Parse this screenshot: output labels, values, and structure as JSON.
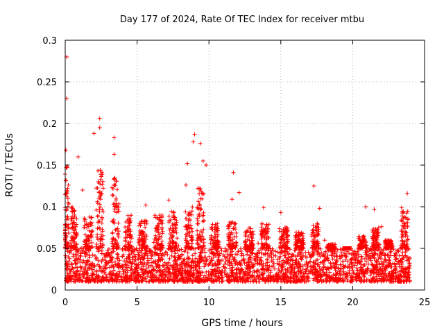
{
  "chart_data": {
    "type": "scatter",
    "title": "Day 177 of 2024, Rate Of TEC Index for receiver mtbu",
    "xlabel": "GPS time / hours",
    "ylabel": "ROTI / TECUs",
    "xlim": [
      0,
      25
    ],
    "ylim": [
      0,
      0.3
    ],
    "xticks": [
      0,
      5,
      10,
      15,
      20,
      25
    ],
    "xtick_labels": [
      "0",
      "5",
      "10",
      "15",
      "20",
      "25"
    ],
    "yticks": [
      0,
      0.05,
      0.1,
      0.15,
      0.2,
      0.25,
      0.3
    ],
    "ytick_labels": [
      "0",
      "0.05",
      "0.1",
      "0.15",
      "0.2",
      "0.25",
      "0.3"
    ],
    "grid": true,
    "marker": "+",
    "color": "#ff0000",
    "x_range_observed": [
      0,
      24
    ],
    "baseline_band": [
      0.01,
      0.05
    ],
    "notable_points": [
      {
        "x": 0.1,
        "y": 0.28
      },
      {
        "x": 0.1,
        "y": 0.23
      },
      {
        "x": 0.05,
        "y": 0.168
      },
      {
        "x": 0.9,
        "y": 0.16
      },
      {
        "x": 2.0,
        "y": 0.188
      },
      {
        "x": 2.4,
        "y": 0.206
      },
      {
        "x": 2.4,
        "y": 0.195
      },
      {
        "x": 2.3,
        "y": 0.13
      },
      {
        "x": 3.4,
        "y": 0.183
      },
      {
        "x": 3.4,
        "y": 0.163
      },
      {
        "x": 8.5,
        "y": 0.152
      },
      {
        "x": 8.4,
        "y": 0.126
      },
      {
        "x": 9.0,
        "y": 0.187
      },
      {
        "x": 8.9,
        "y": 0.178
      },
      {
        "x": 9.4,
        "y": 0.176
      },
      {
        "x": 9.6,
        "y": 0.155
      },
      {
        "x": 9.8,
        "y": 0.15
      },
      {
        "x": 11.7,
        "y": 0.141
      },
      {
        "x": 12.1,
        "y": 0.117
      },
      {
        "x": 11.6,
        "y": 0.109
      },
      {
        "x": 13.8,
        "y": 0.099
      },
      {
        "x": 15.0,
        "y": 0.093
      },
      {
        "x": 17.3,
        "y": 0.125
      },
      {
        "x": 17.7,
        "y": 0.098
      },
      {
        "x": 17.5,
        "y": 0.075
      },
      {
        "x": 20.9,
        "y": 0.1
      },
      {
        "x": 21.5,
        "y": 0.097
      },
      {
        "x": 22.0,
        "y": 0.076
      },
      {
        "x": 23.8,
        "y": 0.116
      },
      {
        "x": 23.4,
        "y": 0.099
      },
      {
        "x": 7.2,
        "y": 0.108
      },
      {
        "x": 5.6,
        "y": 0.102
      },
      {
        "x": 1.2,
        "y": 0.12
      }
    ],
    "spike_clusters": [
      {
        "x": 0.1,
        "hi": 0.15,
        "w": 0.35
      },
      {
        "x": 0.6,
        "hi": 0.1,
        "w": 0.4
      },
      {
        "x": 1.6,
        "hi": 0.09,
        "w": 0.6
      },
      {
        "x": 2.4,
        "hi": 0.145,
        "w": 0.5
      },
      {
        "x": 3.5,
        "hi": 0.14,
        "w": 0.5
      },
      {
        "x": 4.4,
        "hi": 0.09,
        "w": 0.5
      },
      {
        "x": 5.4,
        "hi": 0.085,
        "w": 0.6
      },
      {
        "x": 6.5,
        "hi": 0.09,
        "w": 0.6
      },
      {
        "x": 7.5,
        "hi": 0.095,
        "w": 0.6
      },
      {
        "x": 8.6,
        "hi": 0.1,
        "w": 0.5
      },
      {
        "x": 9.4,
        "hi": 0.135,
        "w": 0.5
      },
      {
        "x": 10.4,
        "hi": 0.08,
        "w": 0.6
      },
      {
        "x": 11.6,
        "hi": 0.085,
        "w": 0.6
      },
      {
        "x": 12.8,
        "hi": 0.075,
        "w": 0.6
      },
      {
        "x": 13.9,
        "hi": 0.08,
        "w": 0.6
      },
      {
        "x": 15.2,
        "hi": 0.075,
        "w": 0.6
      },
      {
        "x": 16.3,
        "hi": 0.07,
        "w": 0.6
      },
      {
        "x": 17.4,
        "hi": 0.08,
        "w": 0.5
      },
      {
        "x": 18.5,
        "hi": 0.055,
        "w": 0.6
      },
      {
        "x": 19.6,
        "hi": 0.05,
        "w": 0.6
      },
      {
        "x": 20.7,
        "hi": 0.065,
        "w": 0.6
      },
      {
        "x": 21.6,
        "hi": 0.075,
        "w": 0.5
      },
      {
        "x": 22.5,
        "hi": 0.06,
        "w": 0.5
      },
      {
        "x": 23.6,
        "hi": 0.095,
        "w": 0.5
      }
    ]
  }
}
